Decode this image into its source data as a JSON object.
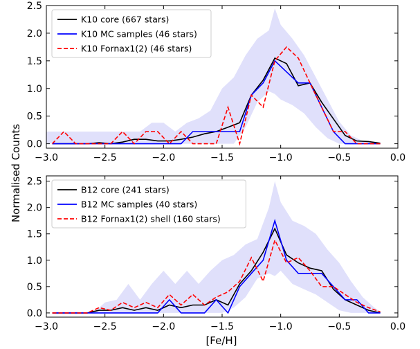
{
  "figure": {
    "shared_ylabel": "Normalised Counts",
    "shared_xlabel": "[Fe/H]"
  },
  "chart_data": [
    {
      "type": "line",
      "panel": "top",
      "xlim": [
        -3.0,
        0.0
      ],
      "ylim": [
        -0.08,
        2.5
      ],
      "xticks": [
        -3.0,
        -2.5,
        -2.0,
        -1.5,
        -1.0,
        -0.5,
        0.0
      ],
      "xtick_labels": [
        "−3.0",
        "−2.5",
        "−2.0",
        "−1.5",
        "−1.0",
        "−0.5",
        "0.0"
      ],
      "yticks": [
        0.0,
        0.5,
        1.0,
        1.5,
        2.0,
        2.5
      ],
      "ytick_labels": [
        "0.0",
        "0.5",
        "1.0",
        "1.5",
        "2.0",
        "2.5"
      ],
      "legend_position": "top-left",
      "grid": false,
      "band": {
        "color": "#e0e0fb",
        "x": [
          -3.0,
          -2.9,
          -2.8,
          -2.7,
          -2.6,
          -2.5,
          -2.4,
          -2.3,
          -2.2,
          -2.1,
          -2.0,
          -1.9,
          -1.8,
          -1.7,
          -1.6,
          -1.5,
          -1.4,
          -1.3,
          -1.2,
          -1.1,
          -1.05,
          -1.0,
          -0.9,
          -0.8,
          -0.7,
          -0.6,
          -0.5,
          -0.4,
          -0.3,
          -0.2,
          -0.15
        ],
        "upper": [
          0.22,
          0.22,
          0.22,
          0.22,
          0.22,
          0.22,
          0.22,
          0.22,
          0.22,
          0.38,
          0.38,
          0.22,
          0.38,
          0.46,
          0.6,
          1.0,
          1.2,
          1.6,
          1.9,
          2.05,
          2.45,
          2.15,
          1.9,
          1.6,
          1.2,
          0.8,
          0.4,
          0.15,
          0.05,
          0.02,
          0.02
        ],
        "lower": [
          0,
          0,
          0,
          0,
          0,
          0,
          0,
          0,
          0,
          0,
          0,
          0,
          0,
          0,
          0,
          0,
          0,
          0.3,
          0.75,
          0.95,
          0.9,
          0.8,
          0.7,
          0.55,
          0.3,
          0.1,
          0,
          0,
          0,
          0,
          0
        ]
      },
      "series": [
        {
          "name": "K10 core (667 stars)",
          "color": "#000000",
          "dash": "solid",
          "x": [
            -2.95,
            -2.85,
            -2.75,
            -2.65,
            -2.55,
            -2.45,
            -2.35,
            -2.25,
            -2.15,
            -2.05,
            -1.95,
            -1.85,
            -1.75,
            -1.65,
            -1.55,
            -1.45,
            -1.35,
            -1.25,
            -1.15,
            -1.05,
            -0.95,
            -0.85,
            -0.75,
            -0.65,
            -0.55,
            -0.45,
            -0.35,
            -0.25,
            -0.15
          ],
          "y": [
            0.0,
            0.0,
            0.0,
            0.0,
            0.02,
            0.0,
            0.03,
            0.08,
            0.08,
            0.05,
            0.05,
            0.08,
            0.12,
            0.18,
            0.22,
            0.3,
            0.38,
            0.88,
            1.15,
            1.55,
            1.45,
            1.05,
            1.1,
            0.75,
            0.45,
            0.15,
            0.05,
            0.04,
            0.01
          ]
        },
        {
          "name": "K10 MC samples (46 stars)",
          "color": "#0000ff",
          "dash": "solid",
          "x": [
            -2.95,
            -2.85,
            -2.75,
            -2.65,
            -2.55,
            -2.45,
            -2.35,
            -2.25,
            -2.15,
            -2.05,
            -1.95,
            -1.85,
            -1.75,
            -1.65,
            -1.55,
            -1.45,
            -1.35,
            -1.25,
            -1.15,
            -1.05,
            -0.95,
            -0.85,
            -0.75,
            -0.65,
            -0.55,
            -0.45,
            -0.35,
            -0.25,
            -0.15
          ],
          "y": [
            0.0,
            0.0,
            0.0,
            0.0,
            0.0,
            0.0,
            0.0,
            0.0,
            0.0,
            0.0,
            0.0,
            0.0,
            0.22,
            0.22,
            0.22,
            0.22,
            0.22,
            0.88,
            1.1,
            1.5,
            1.3,
            1.1,
            1.1,
            0.66,
            0.22,
            0.0,
            0.0,
            0.0,
            0.0
          ]
        },
        {
          "name": "K10 Fornax1(2) (46 stars)",
          "color": "#ff0000",
          "dash": "dashed",
          "x": [
            -2.95,
            -2.85,
            -2.75,
            -2.65,
            -2.55,
            -2.45,
            -2.35,
            -2.25,
            -2.15,
            -2.05,
            -1.95,
            -1.85,
            -1.75,
            -1.65,
            -1.55,
            -1.45,
            -1.35,
            -1.25,
            -1.15,
            -1.05,
            -0.95,
            -0.85,
            -0.75,
            -0.65,
            -0.55,
            -0.45,
            -0.35,
            -0.25,
            -0.15
          ],
          "y": [
            0.0,
            0.22,
            0.0,
            0.0,
            0.0,
            0.0,
            0.22,
            0.0,
            0.22,
            0.22,
            0.0,
            0.22,
            0.0,
            0.0,
            0.0,
            0.66,
            0.0,
            0.88,
            0.66,
            1.5,
            1.75,
            1.55,
            1.1,
            0.66,
            0.22,
            0.22,
            0.0,
            0.0,
            0.0
          ]
        }
      ]
    },
    {
      "type": "line",
      "panel": "bottom",
      "xlim": [
        -3.0,
        0.0
      ],
      "ylim": [
        -0.08,
        2.6
      ],
      "xticks": [
        -3.0,
        -2.5,
        -2.0,
        -1.5,
        -1.0,
        -0.5,
        0.0
      ],
      "xtick_labels": [
        "−3.0",
        "−2.5",
        "−2.0",
        "−1.5",
        "−1.0",
        "−0.5",
        "0.0"
      ],
      "yticks": [
        0.0,
        0.5,
        1.0,
        1.5,
        2.0,
        2.5
      ],
      "ytick_labels": [
        "0.0",
        "0.5",
        "1.0",
        "1.5",
        "2.0",
        "2.5"
      ],
      "legend_position": "top-left",
      "grid": false,
      "band": {
        "color": "#e0e0fb",
        "x": [
          -3.0,
          -2.9,
          -2.8,
          -2.7,
          -2.6,
          -2.5,
          -2.4,
          -2.3,
          -2.2,
          -2.1,
          -2.0,
          -1.9,
          -1.8,
          -1.7,
          -1.6,
          -1.5,
          -1.4,
          -1.3,
          -1.2,
          -1.1,
          -1.05,
          -1.0,
          -0.9,
          -0.8,
          -0.7,
          -0.6,
          -0.5,
          -0.4,
          -0.3,
          -0.2,
          -0.15
        ],
        "upper": [
          0.0,
          0.0,
          0.0,
          0.0,
          0.0,
          0.2,
          0.25,
          0.55,
          0.25,
          0.55,
          0.8,
          0.55,
          0.8,
          0.55,
          0.8,
          1.0,
          1.1,
          1.3,
          1.4,
          2.0,
          2.5,
          2.1,
          1.75,
          1.65,
          1.5,
          1.2,
          0.95,
          0.6,
          0.3,
          0.1,
          0.02
        ],
        "lower": [
          0,
          0,
          0,
          0,
          0,
          0,
          0,
          0,
          0,
          0,
          0,
          0,
          0,
          0,
          0,
          0,
          0.1,
          0.3,
          0.65,
          0.75,
          0.7,
          0.8,
          0.55,
          0.45,
          0.35,
          0.2,
          0.05,
          0,
          0,
          0,
          0
        ]
      },
      "series": [
        {
          "name": "B12 core (241 stars)",
          "color": "#000000",
          "dash": "solid",
          "x": [
            -2.95,
            -2.85,
            -2.75,
            -2.65,
            -2.55,
            -2.45,
            -2.35,
            -2.25,
            -2.15,
            -2.05,
            -1.95,
            -1.85,
            -1.75,
            -1.65,
            -1.55,
            -1.45,
            -1.35,
            -1.25,
            -1.15,
            -1.05,
            -0.95,
            -0.85,
            -0.75,
            -0.65,
            -0.55,
            -0.45,
            -0.35,
            -0.25,
            -0.15
          ],
          "y": [
            0.0,
            0.0,
            0.0,
            0.0,
            0.05,
            0.05,
            0.1,
            0.05,
            0.1,
            0.05,
            0.15,
            0.1,
            0.15,
            0.15,
            0.25,
            0.15,
            0.55,
            0.8,
            1.15,
            1.6,
            1.1,
            0.95,
            0.85,
            0.8,
            0.45,
            0.25,
            0.15,
            0.05,
            0.0
          ]
        },
        {
          "name": "B12 MC samples (40 stars)",
          "color": "#0000ff",
          "dash": "solid",
          "x": [
            -2.95,
            -2.85,
            -2.75,
            -2.65,
            -2.55,
            -2.45,
            -2.35,
            -2.25,
            -2.15,
            -2.05,
            -1.95,
            -1.85,
            -1.75,
            -1.65,
            -1.55,
            -1.45,
            -1.35,
            -1.25,
            -1.15,
            -1.05,
            -0.95,
            -0.85,
            -0.75,
            -0.65,
            -0.55,
            -0.45,
            -0.35,
            -0.25,
            -0.15
          ],
          "y": [
            0.0,
            0.0,
            0.0,
            0.0,
            0.0,
            0.0,
            0.0,
            0.0,
            0.0,
            0.0,
            0.25,
            0.0,
            0.0,
            0.0,
            0.25,
            0.0,
            0.5,
            0.75,
            1.0,
            1.75,
            1.0,
            0.75,
            0.75,
            0.75,
            0.5,
            0.25,
            0.25,
            0.0,
            0.0
          ]
        },
        {
          "name": "B12 Fornax1(2) shell (160 stars)",
          "color": "#ff0000",
          "dash": "dashed",
          "x": [
            -2.95,
            -2.85,
            -2.75,
            -2.65,
            -2.55,
            -2.45,
            -2.35,
            -2.25,
            -2.15,
            -2.05,
            -1.95,
            -1.85,
            -1.75,
            -1.65,
            -1.55,
            -1.45,
            -1.35,
            -1.25,
            -1.15,
            -1.05,
            -0.95,
            -0.85,
            -0.75,
            -0.65,
            -0.55,
            -0.45,
            -0.35,
            -0.25,
            -0.15
          ],
          "y": [
            0.0,
            0.0,
            0.0,
            0.0,
            0.1,
            0.05,
            0.2,
            0.1,
            0.2,
            0.1,
            0.35,
            0.15,
            0.35,
            0.15,
            0.3,
            0.4,
            0.6,
            1.05,
            0.6,
            1.38,
            0.95,
            1.05,
            0.8,
            0.5,
            0.5,
            0.35,
            0.2,
            0.1,
            0.02
          ]
        }
      ]
    }
  ]
}
